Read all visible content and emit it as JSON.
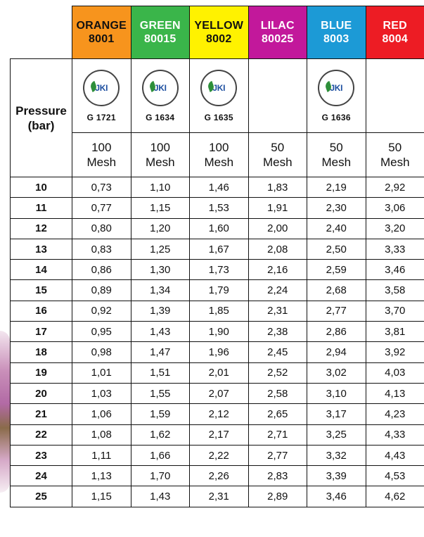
{
  "table": {
    "pressure_header_line1": "Pressure",
    "pressure_header_line2": "(bar)",
    "columns": [
      {
        "name": "ORANGE",
        "code": "8001",
        "color": "#f7941d",
        "text_color": "#111111",
        "cert_code": "G 1721",
        "has_logo": true,
        "mesh_value": "100",
        "mesh_unit": "Mesh"
      },
      {
        "name": "GREEN",
        "code": "80015",
        "color": "#3ab54a",
        "text_color": "#ffffff",
        "cert_code": "G 1634",
        "has_logo": true,
        "mesh_value": "100",
        "mesh_unit": "Mesh"
      },
      {
        "name": "YELLOW",
        "code": "8002",
        "color": "#fff200",
        "text_color": "#111111",
        "cert_code": "G 1635",
        "has_logo": true,
        "mesh_value": "100",
        "mesh_unit": "Mesh"
      },
      {
        "name": "LILAC",
        "code": "80025",
        "color": "#c2189b",
        "text_color": "#ffffff",
        "cert_code": "",
        "has_logo": false,
        "mesh_value": "50",
        "mesh_unit": "Mesh"
      },
      {
        "name": "BLUE",
        "code": "8003",
        "color": "#1c9ad6",
        "text_color": "#ffffff",
        "cert_code": "G 1636",
        "has_logo": true,
        "mesh_value": "50",
        "mesh_unit": "Mesh"
      },
      {
        "name": "RED",
        "code": "8004",
        "color": "#ed1c24",
        "text_color": "#ffffff",
        "cert_code": "",
        "has_logo": false,
        "mesh_value": "50",
        "mesh_unit": "Mesh"
      }
    ],
    "logo_text": "JKI",
    "rows": [
      {
        "pressure": "10",
        "values": [
          "0,73",
          "1,10",
          "1,46",
          "1,83",
          "2,19",
          "2,92"
        ]
      },
      {
        "pressure": "11",
        "values": [
          "0,77",
          "1,15",
          "1,53",
          "1,91",
          "2,30",
          "3,06"
        ]
      },
      {
        "pressure": "12",
        "values": [
          "0,80",
          "1,20",
          "1,60",
          "2,00",
          "2,40",
          "3,20"
        ]
      },
      {
        "pressure": "13",
        "values": [
          "0,83",
          "1,25",
          "1,67",
          "2,08",
          "2,50",
          "3,33"
        ]
      },
      {
        "pressure": "14",
        "values": [
          "0,86",
          "1,30",
          "1,73",
          "2,16",
          "2,59",
          "3,46"
        ]
      },
      {
        "pressure": "15",
        "values": [
          "0,89",
          "1,34",
          "1,79",
          "2,24",
          "2,68",
          "3,58"
        ]
      },
      {
        "pressure": "16",
        "values": [
          "0,92",
          "1,39",
          "1,85",
          "2,31",
          "2,77",
          "3,70"
        ]
      },
      {
        "pressure": "17",
        "values": [
          "0,95",
          "1,43",
          "1,90",
          "2,38",
          "2,86",
          "3,81"
        ]
      },
      {
        "pressure": "18",
        "values": [
          "0,98",
          "1,47",
          "1,96",
          "2,45",
          "2,94",
          "3,92"
        ]
      },
      {
        "pressure": "19",
        "values": [
          "1,01",
          "1,51",
          "2,01",
          "2,52",
          "3,02",
          "4,03"
        ]
      },
      {
        "pressure": "20",
        "values": [
          "1,03",
          "1,55",
          "2,07",
          "2,58",
          "3,10",
          "4,13"
        ]
      },
      {
        "pressure": "21",
        "values": [
          "1,06",
          "1,59",
          "2,12",
          "2,65",
          "3,17",
          "4,23"
        ]
      },
      {
        "pressure": "22",
        "values": [
          "1,08",
          "1,62",
          "2,17",
          "2,71",
          "3,25",
          "4,33"
        ]
      },
      {
        "pressure": "23",
        "values": [
          "1,11",
          "1,66",
          "2,22",
          "2,77",
          "3,32",
          "4,43"
        ]
      },
      {
        "pressure": "24",
        "values": [
          "1,13",
          "1,70",
          "2,26",
          "2,83",
          "3,39",
          "4,53"
        ]
      },
      {
        "pressure": "25",
        "values": [
          "1,15",
          "1,43",
          "2,31",
          "2,89",
          "3,46",
          "4,62"
        ]
      }
    ]
  }
}
